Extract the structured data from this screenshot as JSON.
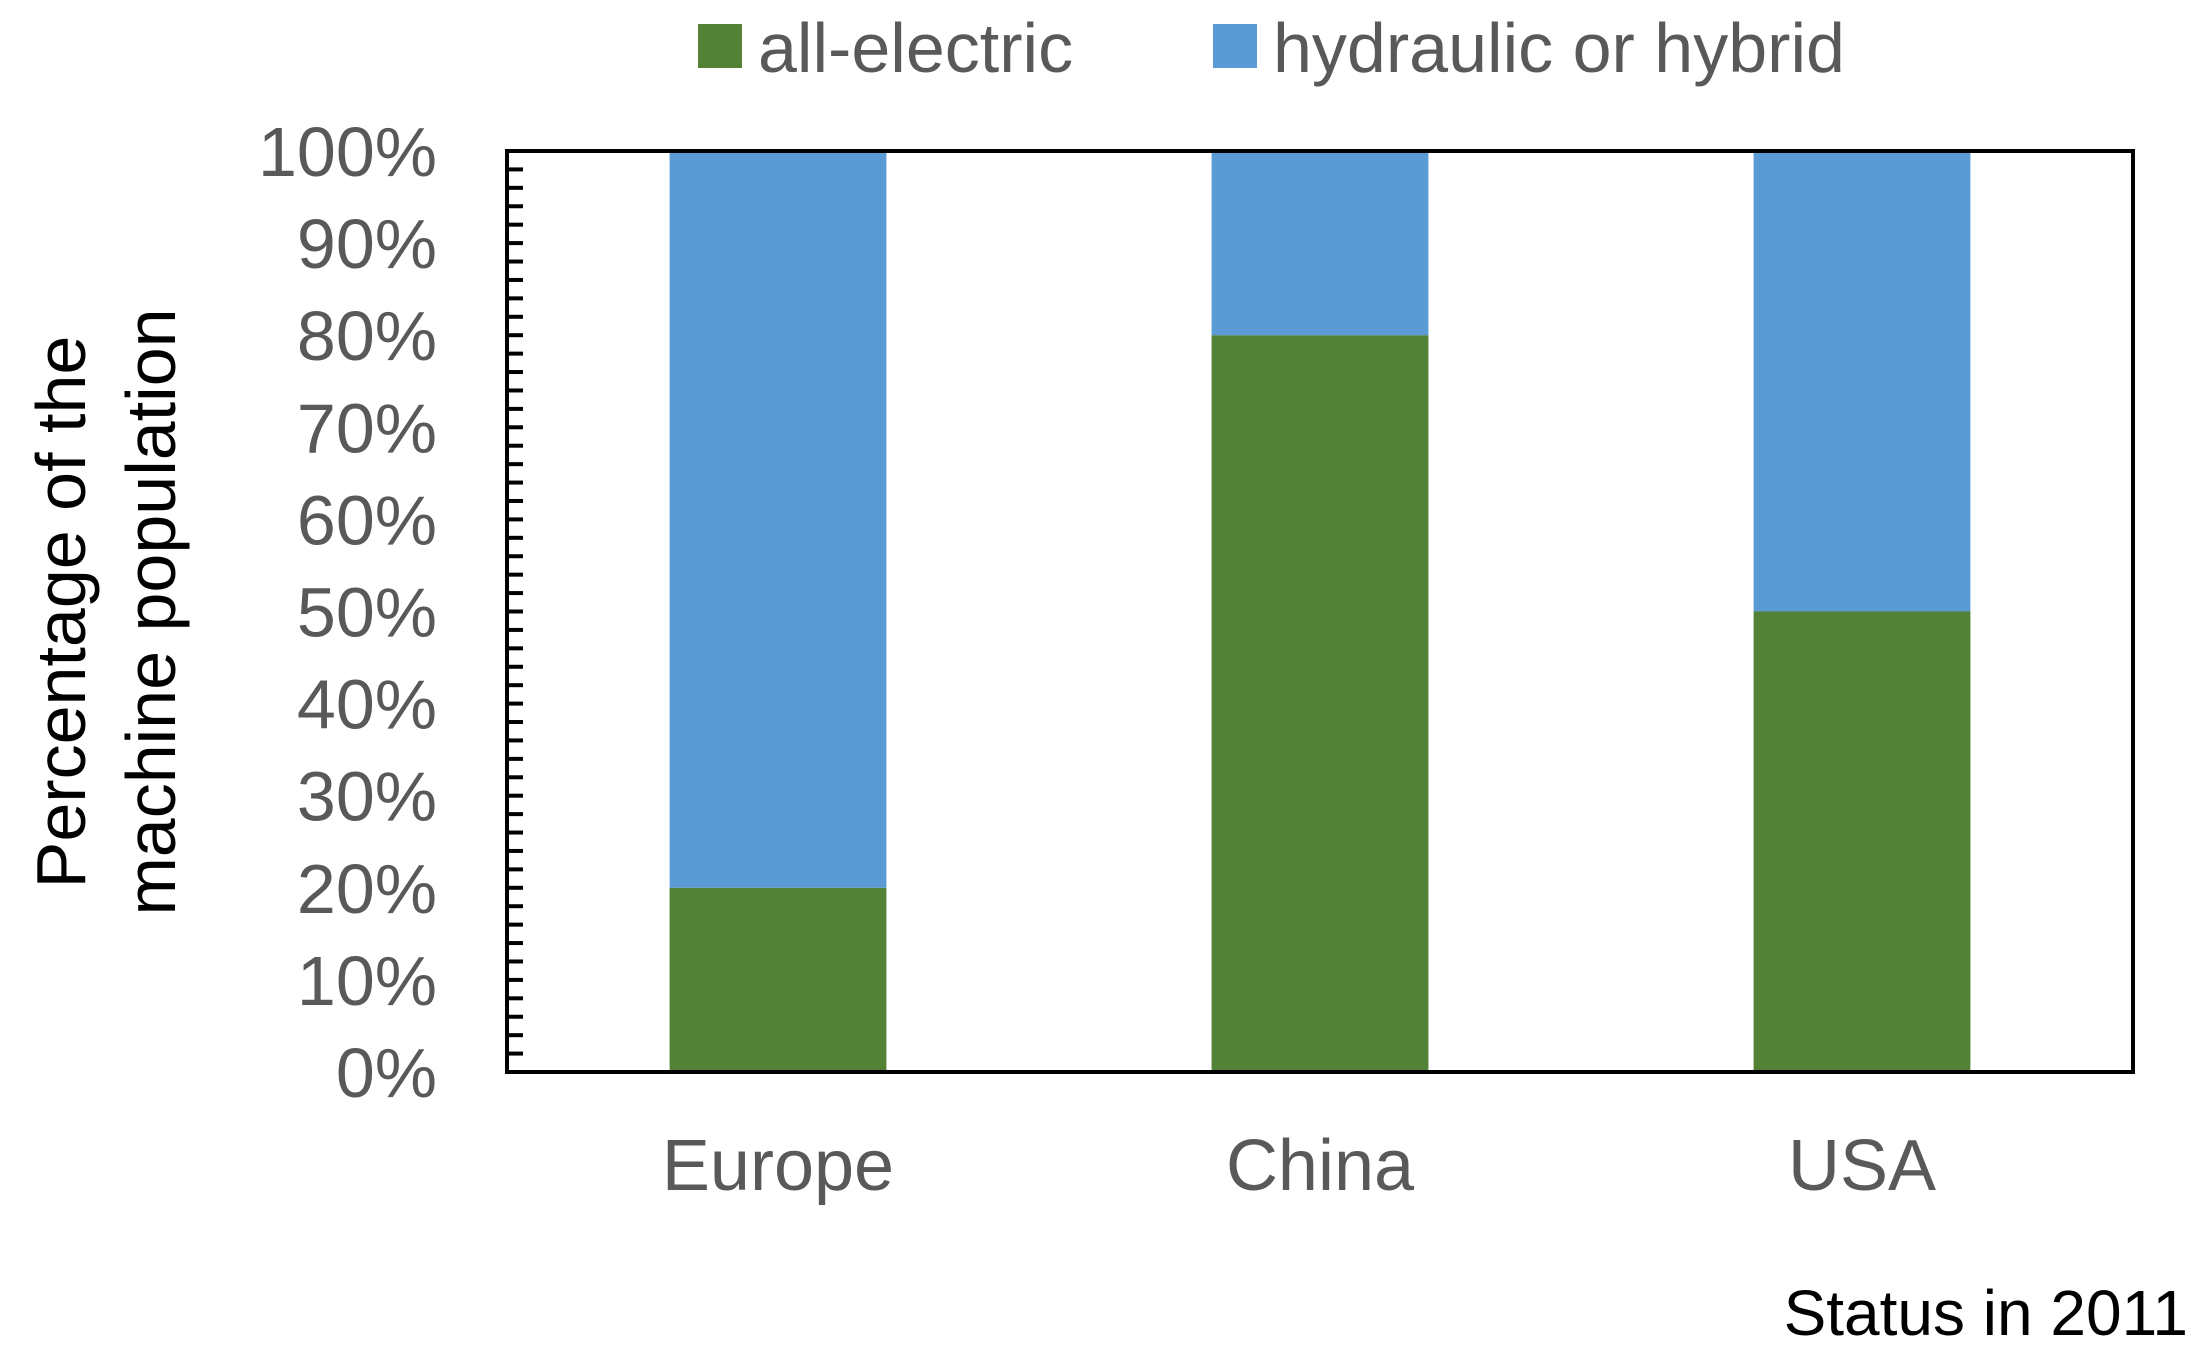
{
  "chart_data": {
    "type": "bar",
    "stacked": true,
    "categories": [
      "Europe",
      "China",
      "USA"
    ],
    "series": [
      {
        "name": "all-electric",
        "color": "#538135",
        "values": [
          20,
          80,
          50
        ]
      },
      {
        "name": "hydraulic or hybrid",
        "color": "#5b9bd5",
        "values": [
          80,
          20,
          50
        ]
      }
    ],
    "ylabel_lines": [
      "Percentage of the",
      "machine population"
    ],
    "ylim": [
      0,
      100
    ],
    "yticks": [
      0,
      10,
      20,
      30,
      40,
      50,
      60,
      70,
      80,
      90,
      100
    ],
    "ytick_labels": [
      "0%",
      "10%",
      "20%",
      "30%",
      "40%",
      "50%",
      "60%",
      "70%",
      "80%",
      "90%",
      "100%"
    ],
    "legend_position": "top",
    "grid": false,
    "footer_note": "Status in 2011"
  }
}
